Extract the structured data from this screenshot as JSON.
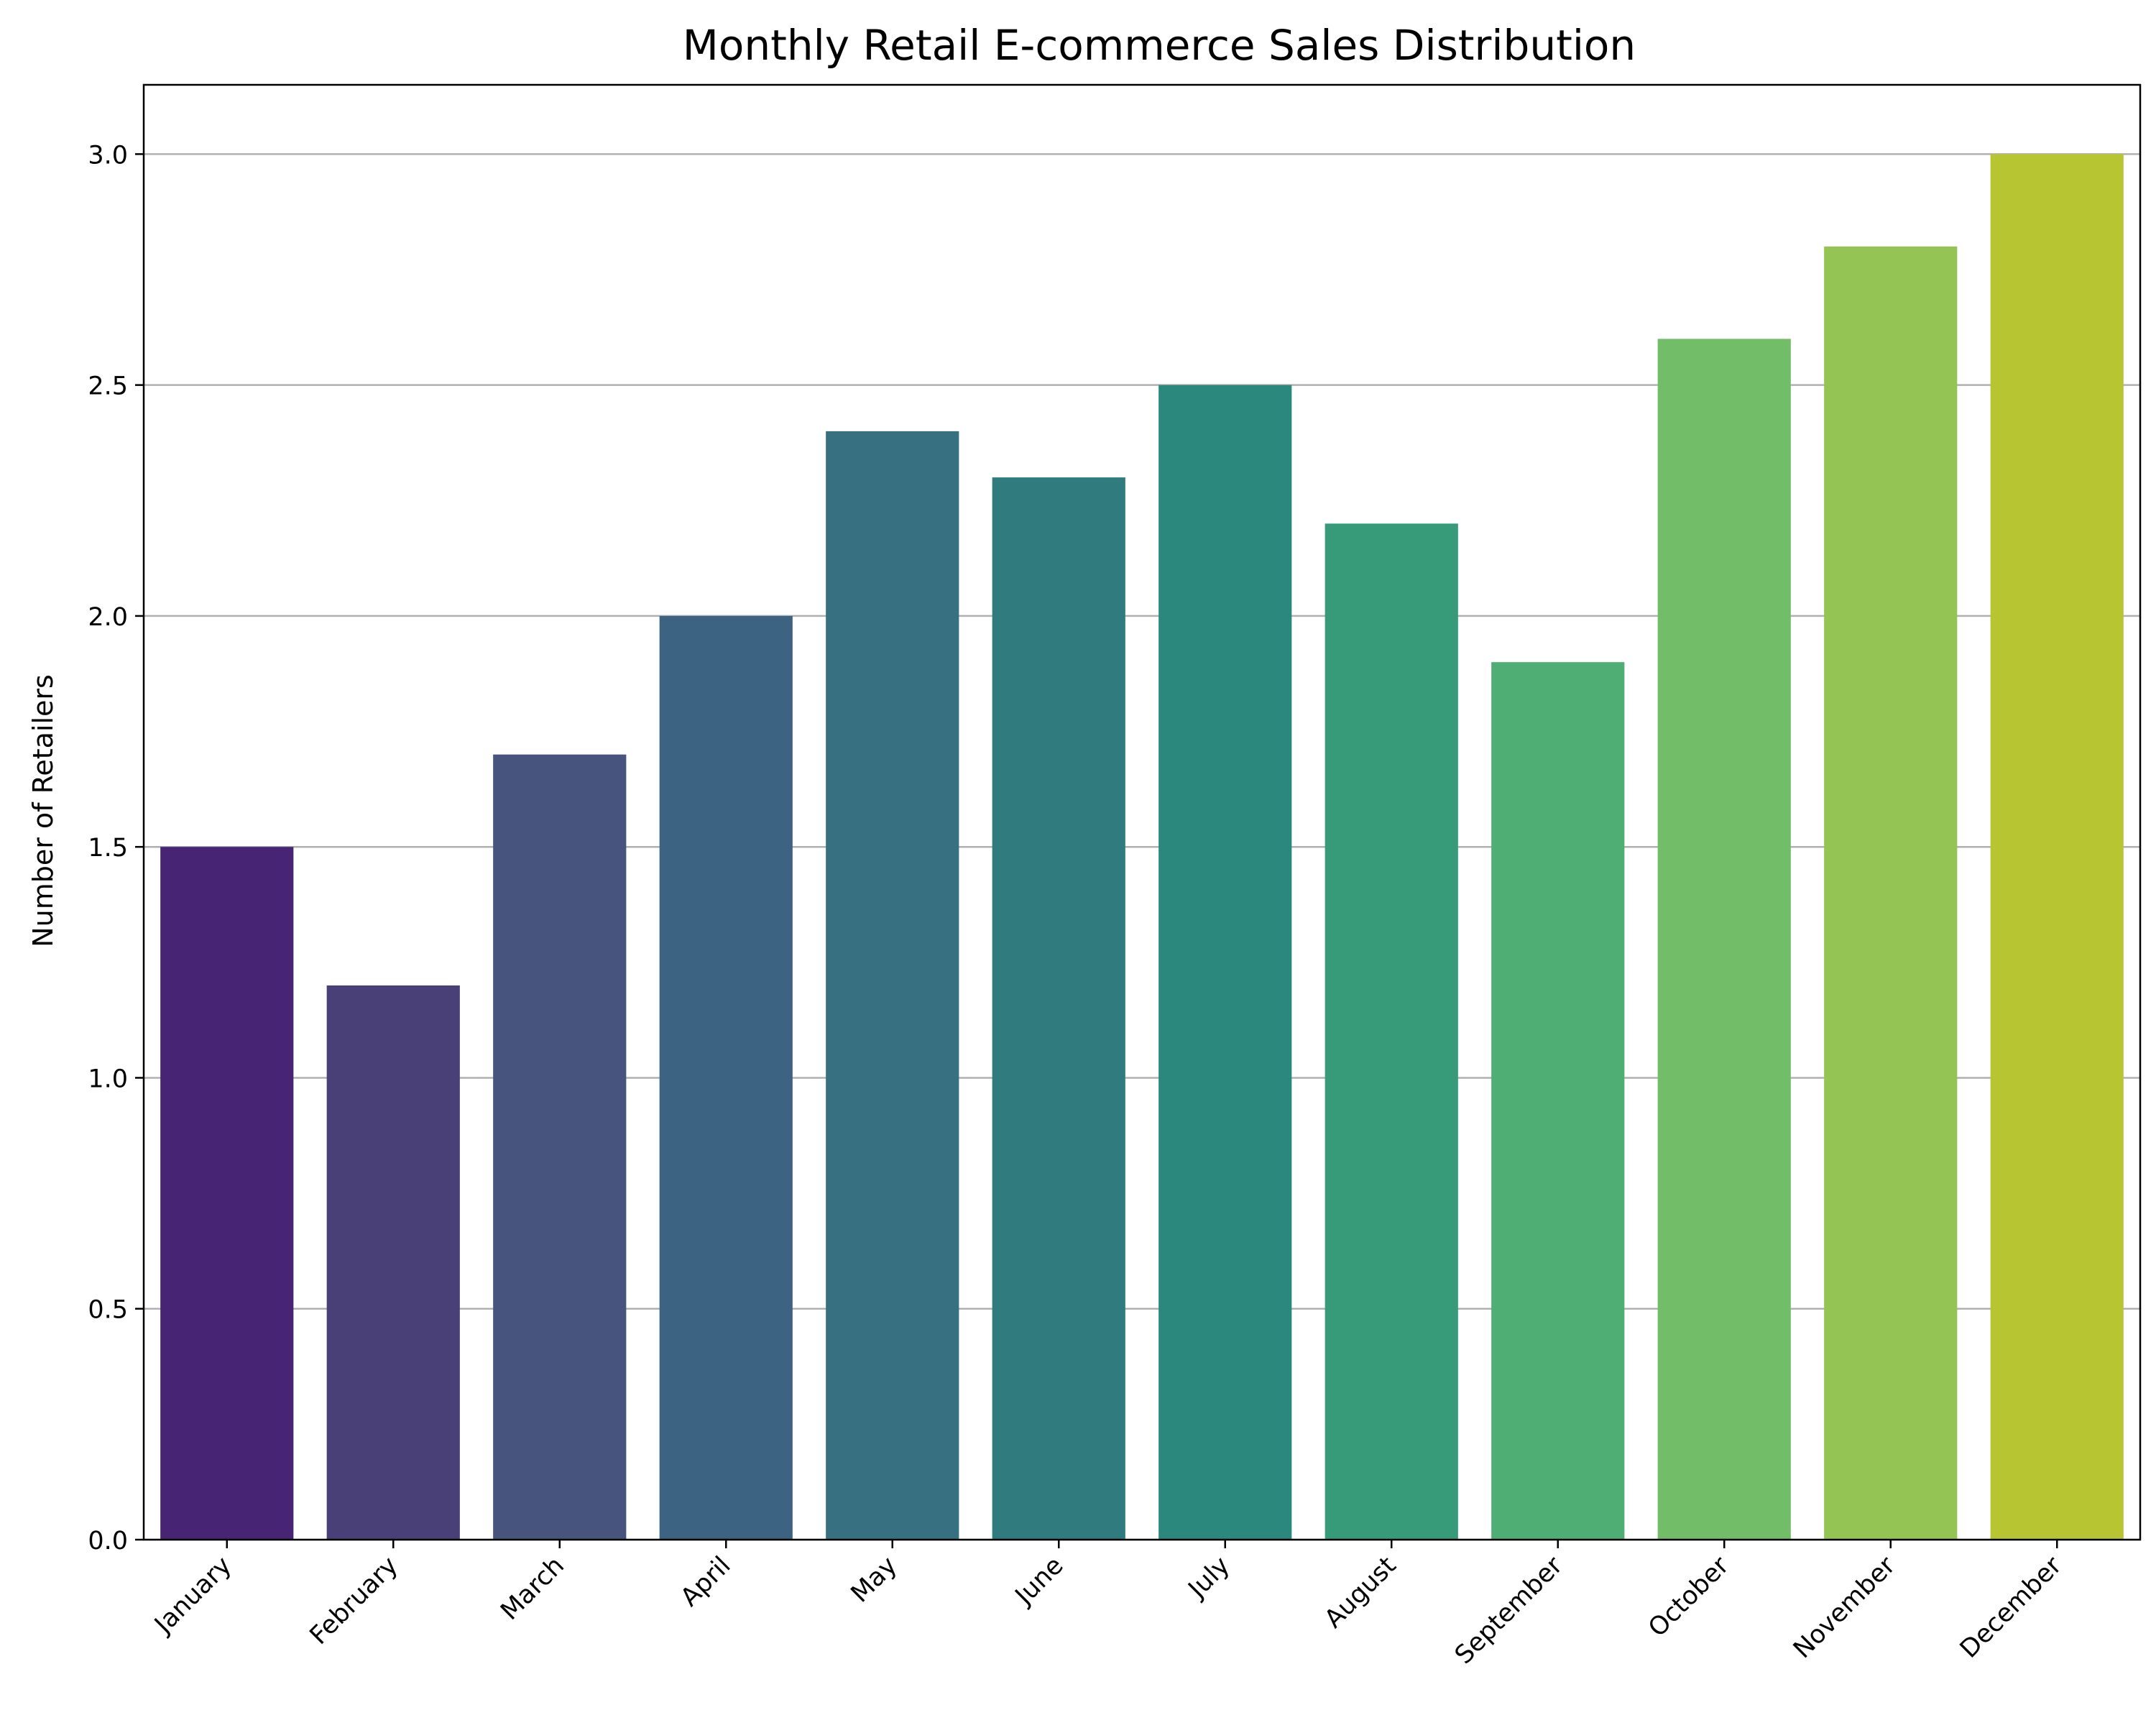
{
  "chart_data": {
    "type": "bar",
    "title": "Monthly Retail E-commerce Sales Distribution",
    "xlabel": "",
    "ylabel": "Number of Retailers",
    "categories": [
      "January",
      "February",
      "March",
      "April",
      "May",
      "June",
      "July",
      "August",
      "September",
      "October",
      "November",
      "December"
    ],
    "values": [
      1.5,
      1.2,
      1.7,
      2.0,
      2.4,
      2.3,
      2.5,
      2.2,
      1.9,
      2.6,
      2.8,
      3.0
    ],
    "colors": [
      "#482475",
      "#4a4078",
      "#46547e",
      "#3d6383",
      "#377080",
      "#2f7b7e",
      "#2b887c",
      "#379b7a",
      "#4fae73",
      "#72be68",
      "#94c454",
      "#b8c533"
    ],
    "ylim": [
      0,
      3.15
    ],
    "yticks": [
      0.0,
      0.5,
      1.0,
      1.5,
      2.0,
      2.5,
      3.0
    ],
    "ytick_labels": [
      "0.0",
      "0.5",
      "1.0",
      "1.5",
      "2.0",
      "2.5",
      "3.0"
    ],
    "grid": "y-major",
    "legend": "none"
  }
}
